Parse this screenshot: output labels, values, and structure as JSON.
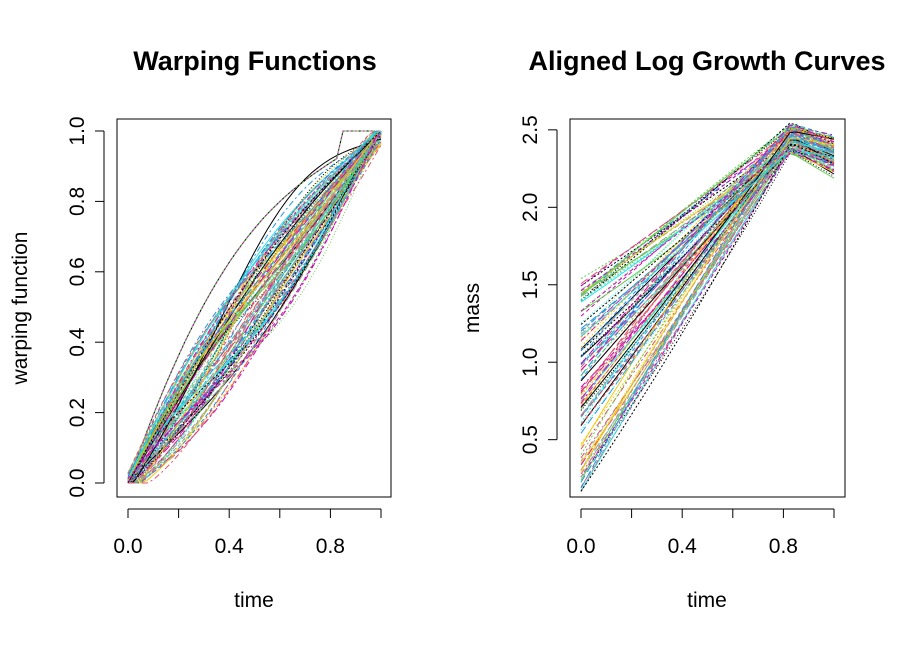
{
  "chart_data": [
    {
      "type": "line",
      "title": "Warping Functions",
      "xlabel": "time",
      "ylabel": "warping function",
      "xlim": [
        0,
        1
      ],
      "ylim": [
        0,
        1
      ],
      "xticks": [
        0.0,
        0.2,
        0.4,
        0.6,
        0.8,
        1.0
      ],
      "xtick_labels": [
        "0.0",
        "",
        "0.4",
        "",
        "0.8",
        ""
      ],
      "yticks": [
        0.0,
        0.2,
        0.4,
        0.6,
        0.8,
        1.0
      ],
      "ytick_labels": [
        "0.0",
        "0.2",
        "0.4",
        "0.6",
        "0.8",
        "1.0"
      ],
      "grid": false,
      "legend": "none",
      "palette": [
        "#000000",
        "#DF536B",
        "#61D04F",
        "#2297E6",
        "#28E2E5",
        "#CD0BBC",
        "#F5C710",
        "#9E9E9E"
      ],
      "series_description": "approx. 100 monotone warping curves from (0,0) to (1,1)",
      "example_series": [
        {
          "x": [
            0,
            0.2,
            0.4,
            0.6,
            0.8,
            1
          ],
          "y": [
            0,
            0.2,
            0.4,
            0.6,
            0.8,
            1
          ]
        },
        {
          "x": [
            0,
            0.2,
            0.3,
            0.5,
            0.7,
            0.83,
            1
          ],
          "y": [
            0,
            0.22,
            0.45,
            0.78,
            0.95,
            1.0,
            1.0
          ]
        },
        {
          "x": [
            0,
            0.2,
            0.4,
            0.6,
            0.8,
            0.95,
            1
          ],
          "y": [
            0,
            0.12,
            0.27,
            0.45,
            0.65,
            0.88,
            1
          ]
        }
      ]
    },
    {
      "type": "line",
      "title": "Aligned Log Growth Curves",
      "xlabel": "time",
      "ylabel": "mass",
      "xlim": [
        0,
        1
      ],
      "ylim": [
        0.13,
        2.57
      ],
      "xticks": [
        0.0,
        0.2,
        0.4,
        0.6,
        0.8,
        1.0
      ],
      "xtick_labels": [
        "0.0",
        "",
        "0.4",
        "",
        "0.8",
        ""
      ],
      "yticks": [
        0.5,
        1.0,
        1.5,
        2.0,
        2.5
      ],
      "ytick_labels": [
        "0.5",
        "1.0",
        "1.5",
        "2.0",
        "2.5"
      ],
      "grid": false,
      "legend": "none",
      "palette": [
        "#000000",
        "#DF536B",
        "#61D04F",
        "#2297E6",
        "#28E2E5",
        "#CD0BBC",
        "#F5C710",
        "#9E9E9E"
      ],
      "series_description": "approx. 100 aligned log growth curves rising from 0.15-1.55 at time 0 to a plateau near 2.45 at time 0.83, then slightly declining",
      "example_series": [
        {
          "x": [
            0,
            0.2,
            0.4,
            0.6,
            0.83,
            1
          ],
          "y": [
            0.15,
            0.7,
            1.3,
            1.9,
            2.45,
            2.3
          ]
        },
        {
          "x": [
            0,
            0.2,
            0.4,
            0.6,
            0.83,
            1
          ],
          "y": [
            0.75,
            1.15,
            1.55,
            1.98,
            2.48,
            2.4
          ]
        },
        {
          "x": [
            0,
            0.2,
            0.4,
            0.6,
            0.83,
            1
          ],
          "y": [
            1.55,
            1.8,
            2.05,
            2.25,
            2.5,
            2.45
          ]
        }
      ]
    }
  ]
}
